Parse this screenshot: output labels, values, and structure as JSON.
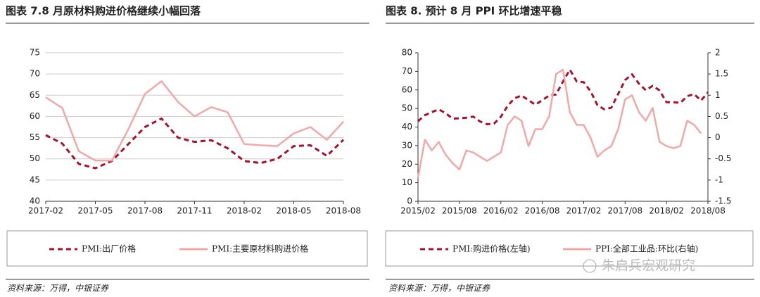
{
  "chart_data": [
    {
      "type": "line",
      "title": "图表 7.8 月原材料购进价格继续小幅回落",
      "source": "资料来源：万得，中银证券",
      "categories": [
        "2017-02",
        null,
        null,
        "2017-05",
        null,
        null,
        "2017-08",
        null,
        null,
        "2017-11",
        null,
        null,
        "2018-02",
        null,
        null,
        "2018-05",
        null,
        null,
        "2018-08"
      ],
      "series": [
        {
          "name": "PMI:出厂价格",
          "color": "#a8122a",
          "line_style": "dashed",
          "values": [
            55.6,
            53.6,
            48.8,
            47.8,
            49.5,
            53.5,
            57.5,
            59.5,
            55.0,
            54.0,
            54.4,
            52.5,
            49.5,
            49.0,
            50.0,
            53.0,
            53.2,
            50.7,
            54.5
          ]
        },
        {
          "name": "PMI:主要原材料购进价格",
          "color": "#f2a8a8",
          "line_style": "solid",
          "values": [
            64.5,
            62.0,
            51.8,
            49.6,
            49.6,
            57.0,
            65.3,
            68.3,
            63.4,
            60.0,
            62.2,
            61.0,
            53.5,
            53.2,
            53.0,
            56.0,
            57.5,
            54.5,
            58.8
          ]
        }
      ],
      "ylim": [
        40,
        75
      ],
      "yticks": [
        40,
        45,
        50,
        55,
        60,
        65,
        70,
        75
      ],
      "grid": true
    },
    {
      "type": "line",
      "title": "图表 8. 预计 8 月 PPI 环比增速平稳",
      "source": "资料来源：万得，中银证券",
      "categories": [
        "2015/02",
        null,
        null,
        null,
        null,
        null,
        "2015/08",
        null,
        null,
        null,
        null,
        null,
        "2016/02",
        null,
        null,
        null,
        null,
        null,
        "2016/08",
        null,
        null,
        null,
        null,
        null,
        "2017/02",
        null,
        null,
        null,
        null,
        null,
        "2017/08",
        null,
        null,
        null,
        null,
        null,
        "2018/02",
        null,
        null,
        null,
        null,
        null,
        "2018/08"
      ],
      "series": [
        {
          "name": "PMI:购进价格(左轴)",
          "color": "#a8122a",
          "line_style": "dashed",
          "values": [
            43.1,
            46.4,
            48.0,
            49.5,
            47.5,
            44.5,
            44.7,
            45.0,
            45.6,
            43.0,
            41.5,
            41.8,
            45.5,
            51.5,
            55.5,
            57.0,
            54.5,
            52.0,
            54.5,
            57.0,
            57.5,
            64.5,
            70.9,
            64.5,
            64.2,
            59.3,
            51.8,
            49.5,
            50.4,
            57.9,
            65.3,
            68.4,
            63.4,
            59.8,
            62.2,
            59.7,
            53.4,
            53.4,
            53.0,
            56.7,
            57.7,
            54.3,
            58.7
          ]
        },
        {
          "name": "PPI:全部工业品:环比(右轴)",
          "color": "#f2a8a8",
          "line_style": "solid",
          "axis": "y2",
          "values": [
            -0.95,
            -0.05,
            -0.3,
            -0.1,
            -0.4,
            -0.6,
            -0.75,
            -0.3,
            -0.35,
            -0.45,
            -0.55,
            -0.45,
            -0.35,
            0.3,
            0.5,
            0.4,
            -0.2,
            0.2,
            0.2,
            0.5,
            1.5,
            1.6,
            0.6,
            0.3,
            0.3,
            0.0,
            -0.45,
            -0.3,
            -0.2,
            0.2,
            0.9,
            1.0,
            0.6,
            0.4,
            0.7,
            -0.1,
            -0.2,
            -0.25,
            -0.2,
            0.4,
            0.3,
            0.1,
            null
          ]
        }
      ],
      "ylim": [
        0,
        80
      ],
      "yticks": [
        0,
        10,
        20,
        30,
        40,
        50,
        60,
        70,
        80
      ],
      "y2lim": [
        -1.5,
        2
      ],
      "y2ticks": [
        -1.5,
        -1,
        -0.5,
        0,
        0.5,
        1,
        1.5,
        2
      ],
      "grid": false
    }
  ],
  "watermark": "朱启兵宏观研究"
}
